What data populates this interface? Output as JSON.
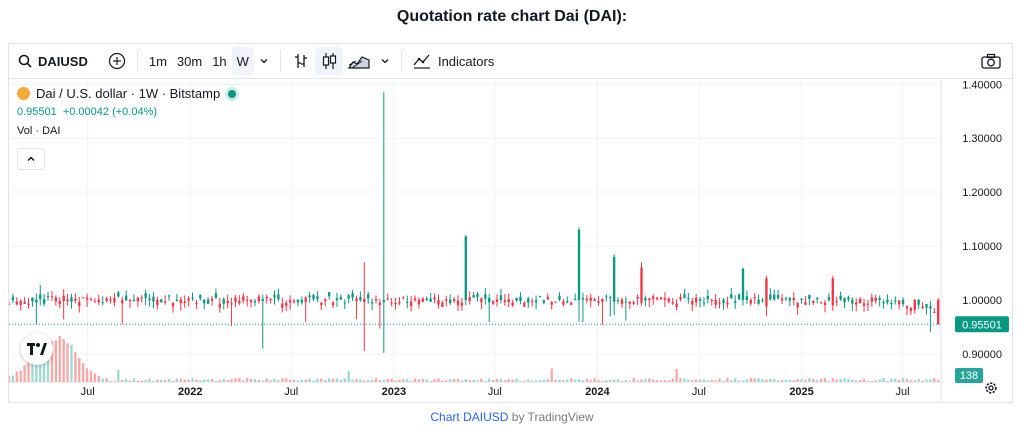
{
  "page_title": "Quotation rate chart Dai (DAI):",
  "toolbar": {
    "symbol": "DAIUSD",
    "intervals": [
      "1m",
      "30m",
      "1h",
      "W"
    ],
    "active_interval": "W",
    "indicators_label": "Indicators",
    "icons": [
      "search-icon",
      "add-compare-icon",
      "chevron-down-icon",
      "bar-style-icon",
      "candle-style-icon",
      "area-style-icon",
      "chevron-down-icon",
      "indicators-icon",
      "camera-icon"
    ]
  },
  "legend": {
    "title": "Dai / U.S. dollar · 1W · Bitstamp",
    "price": "0.95501",
    "change": "+0.00042 (+0.04%)",
    "volume_label": "Vol · DAI"
  },
  "colors": {
    "up": "#089981",
    "down": "#f23645",
    "vol_up": "#9fd9cf",
    "vol_down": "#f7a9a7",
    "price_tag": "#089981",
    "vol_tag": "#26a69a"
  },
  "chart_data": {
    "type": "candlestick",
    "title": "",
    "y_axis": {
      "ticks": [
        "1.40000",
        "1.30000",
        "1.20000",
        "1.10000",
        "1.00000",
        "0.90000"
      ],
      "range": [
        0.848,
        1.408
      ]
    },
    "x_axis": {
      "ticks": [
        "Jul",
        "2022",
        "Jul",
        "2023",
        "Jul",
        "2024",
        "Jul",
        "2025",
        "Jul"
      ],
      "tick_dates": [
        "2021-07-01",
        "2022-01-01",
        "2022-07-01",
        "2023-01-01",
        "2023-07-01",
        "2024-01-01",
        "2024-07-01",
        "2025-01-01",
        "2025-07-01"
      ],
      "range": [
        "2021-02-10",
        "2025-09-08"
      ]
    },
    "last_price_tag": "0.95501",
    "last_volume_tag": "138",
    "grid": true,
    "ohlc_samples": [
      {
        "date": "2021-02-15",
        "open": 1.0,
        "high": 1.012,
        "low": 0.994,
        "close": 1.006
      },
      {
        "date": "2021-04-05",
        "open": 1.002,
        "high": 1.028,
        "low": 0.99,
        "close": 1.01
      },
      {
        "date": "2021-05-17",
        "open": 1.008,
        "high": 1.02,
        "low": 0.964,
        "close": 0.998
      },
      {
        "date": "2022-05-09",
        "open": 0.998,
        "high": 1.01,
        "low": 0.91,
        "close": 1.002
      },
      {
        "date": "2022-11-07",
        "open": 1.002,
        "high": 1.07,
        "low": 0.905,
        "close": 0.996
      },
      {
        "date": "2022-12-12",
        "open": 0.996,
        "high": 1.385,
        "low": 0.902,
        "close": 1.0
      },
      {
        "date": "2023-05-08",
        "open": 1.0,
        "high": 1.12,
        "low": 0.99,
        "close": 1.118
      },
      {
        "date": "2023-11-27",
        "open": 1.0,
        "high": 1.135,
        "low": 0.96,
        "close": 1.13
      },
      {
        "date": "2024-01-29",
        "open": 0.997,
        "high": 1.085,
        "low": 0.972,
        "close": 1.08
      },
      {
        "date": "2024-03-18",
        "open": 1.06,
        "high": 1.07,
        "low": 0.99,
        "close": 0.995
      },
      {
        "date": "2024-09-16",
        "open": 1.0,
        "high": 1.06,
        "low": 0.99,
        "close": 1.058
      },
      {
        "date": "2024-10-28",
        "open": 1.04,
        "high": 1.045,
        "low": 0.97,
        "close": 0.988
      },
      {
        "date": "2025-02-24",
        "open": 1.04,
        "high": 1.045,
        "low": 0.98,
        "close": 0.99
      },
      {
        "date": "2025-07-21",
        "open": 1.0,
        "high": 1.002,
        "low": 0.975,
        "close": 0.982
      },
      {
        "date": "2025-09-01",
        "open": 1.0,
        "high": 1.004,
        "low": 0.955,
        "close": 0.955
      }
    ]
  }
}
